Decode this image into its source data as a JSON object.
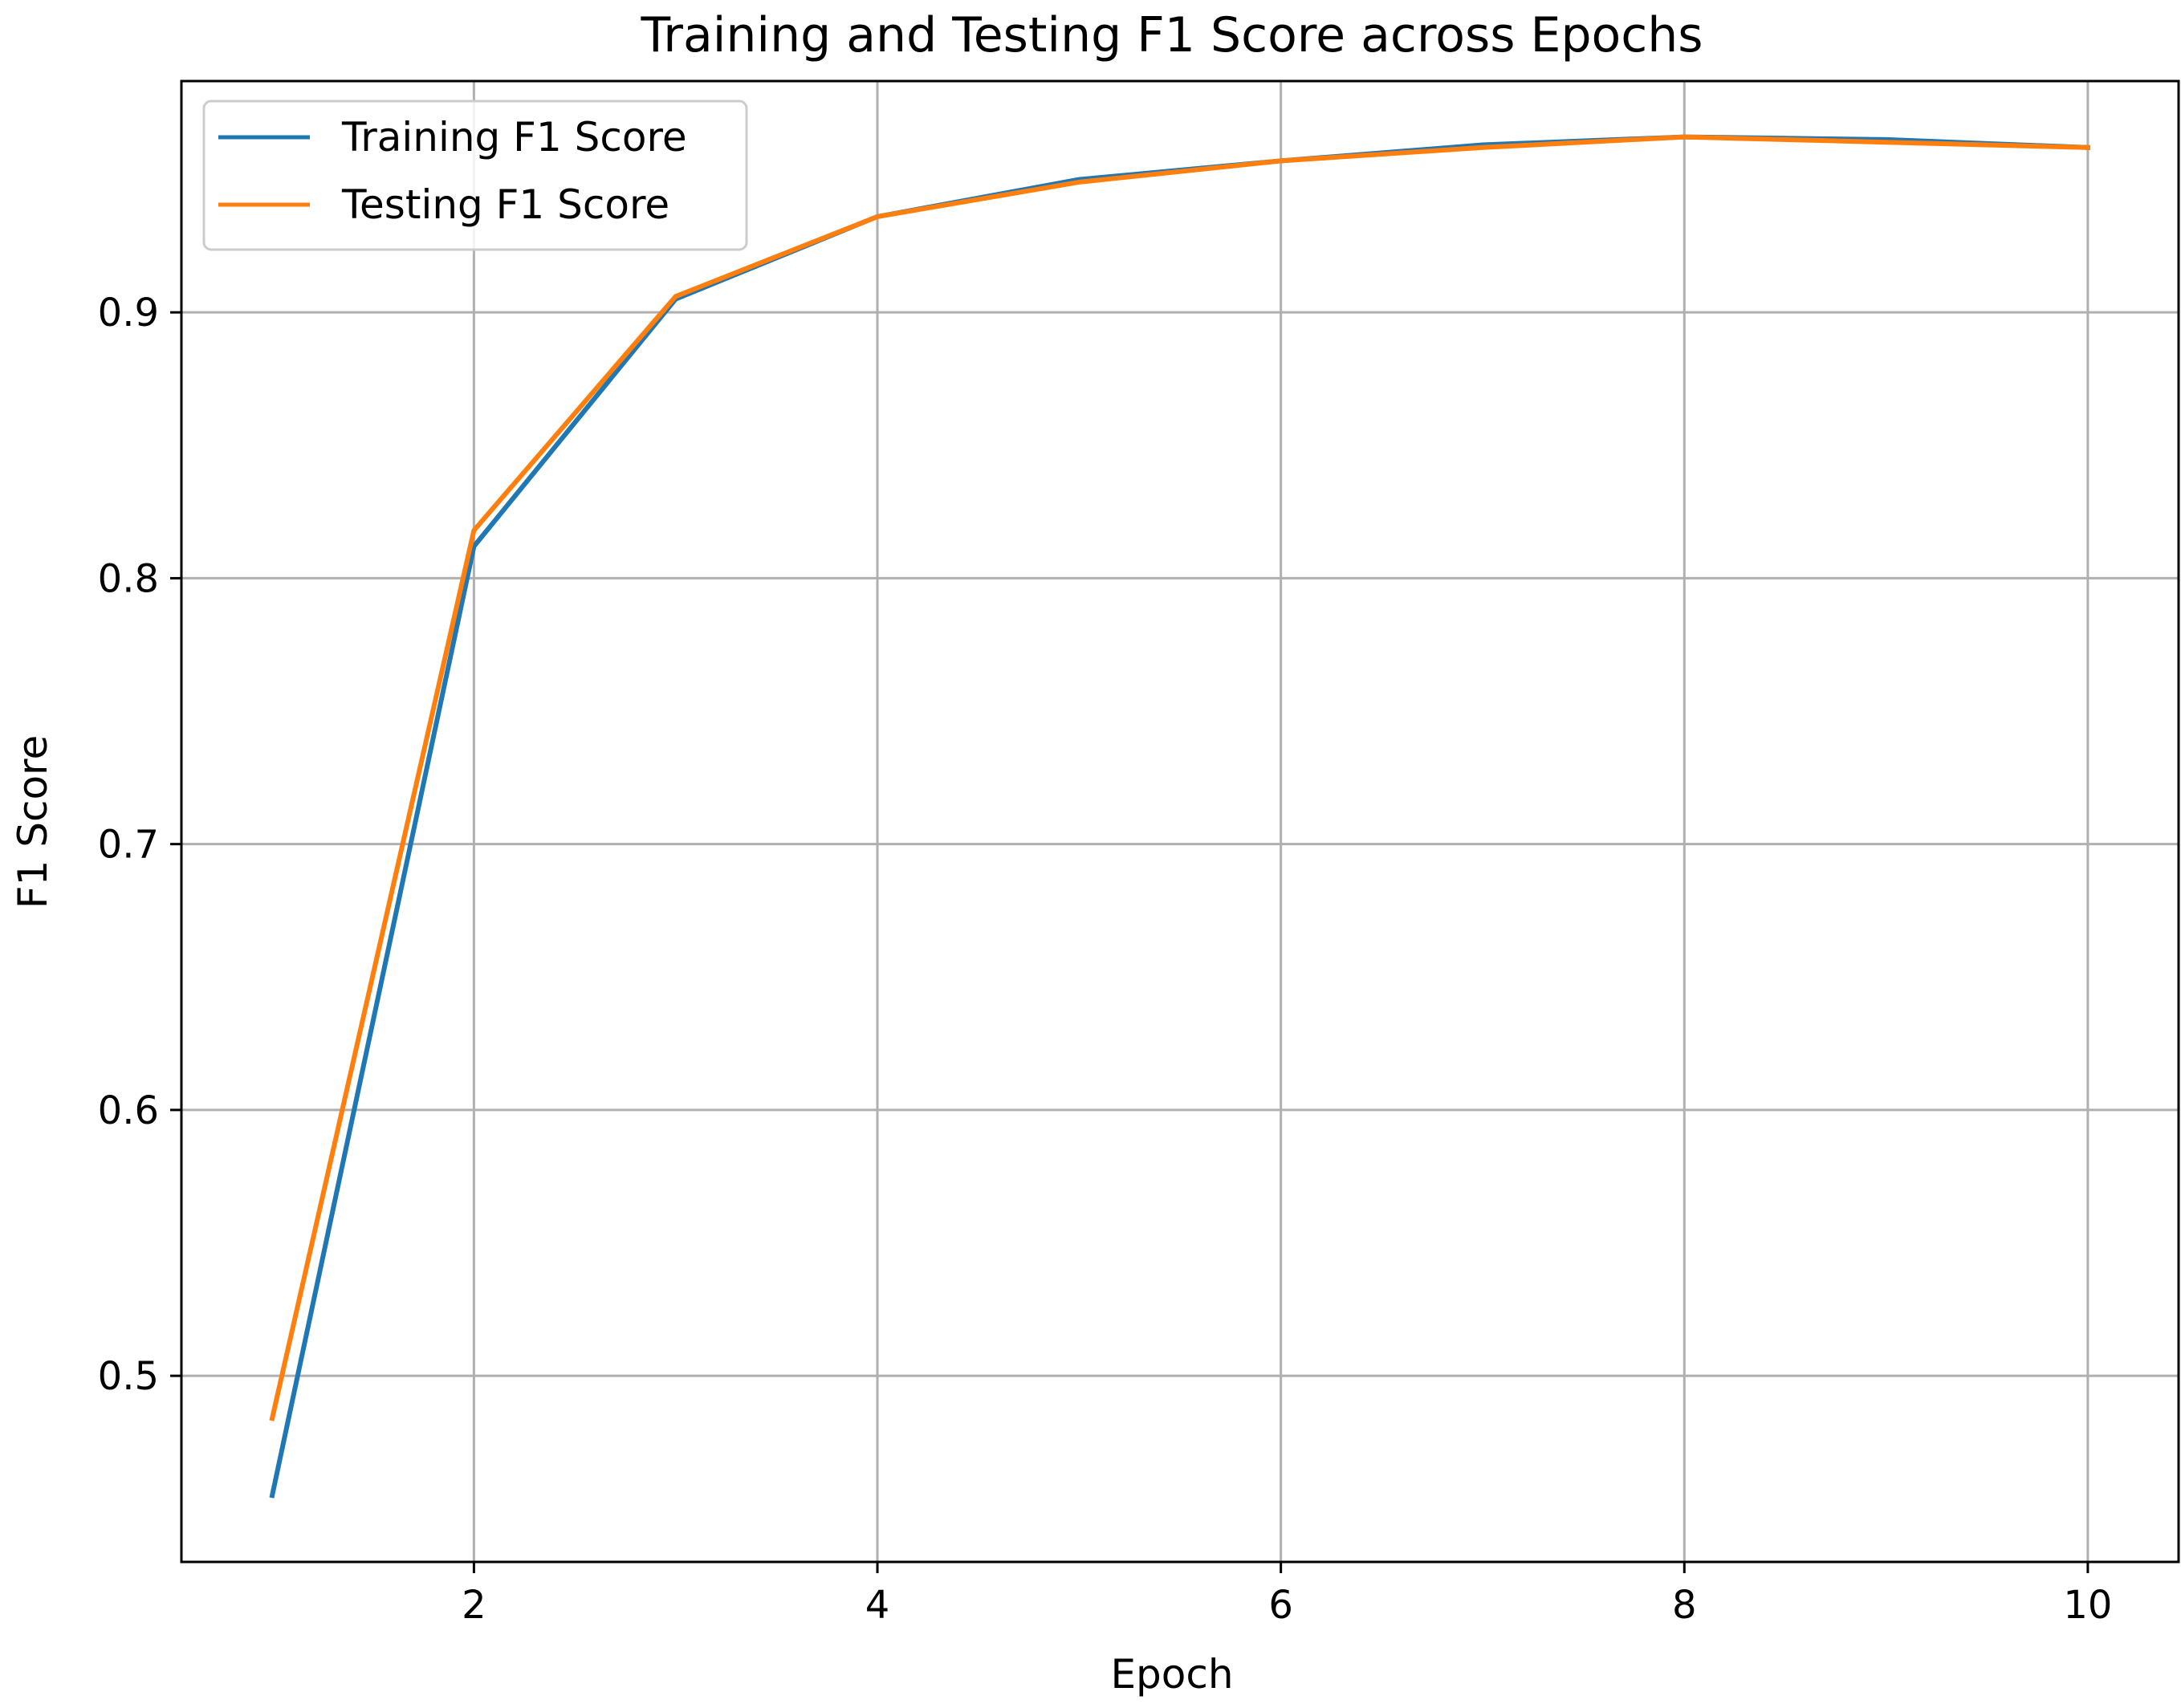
{
  "chart_data": {
    "type": "line",
    "title": "Training and Testing F1 Score across Epochs",
    "xlabel": "Epoch",
    "ylabel": "F1 Score",
    "x": [
      1,
      2,
      3,
      4,
      5,
      6,
      7,
      8,
      9,
      10
    ],
    "series": [
      {
        "name": "Training F1 Score",
        "color": "#1f77b4",
        "values": [
          0.455,
          0.812,
          0.905,
          0.936,
          0.95,
          0.957,
          0.963,
          0.966,
          0.965,
          0.962
        ]
      },
      {
        "name": "Testing F1 Score",
        "color": "#ff7f0e",
        "values": [
          0.484,
          0.818,
          0.906,
          0.936,
          0.949,
          0.957,
          0.962,
          0.966,
          0.964,
          0.962
        ]
      }
    ],
    "xlim": [
      0.55,
      10.45
    ],
    "ylim": [
      0.43,
      0.987
    ],
    "xticks": [
      2,
      4,
      6,
      8,
      10
    ],
    "yticks": [
      0.5,
      0.6,
      0.7,
      0.8,
      0.9
    ],
    "xtick_labels": [
      "2",
      "4",
      "6",
      "8",
      "10"
    ],
    "ytick_labels": [
      "0.5",
      "0.6",
      "0.7",
      "0.8",
      "0.9"
    ],
    "grid": true,
    "legend_position": "top-left"
  }
}
